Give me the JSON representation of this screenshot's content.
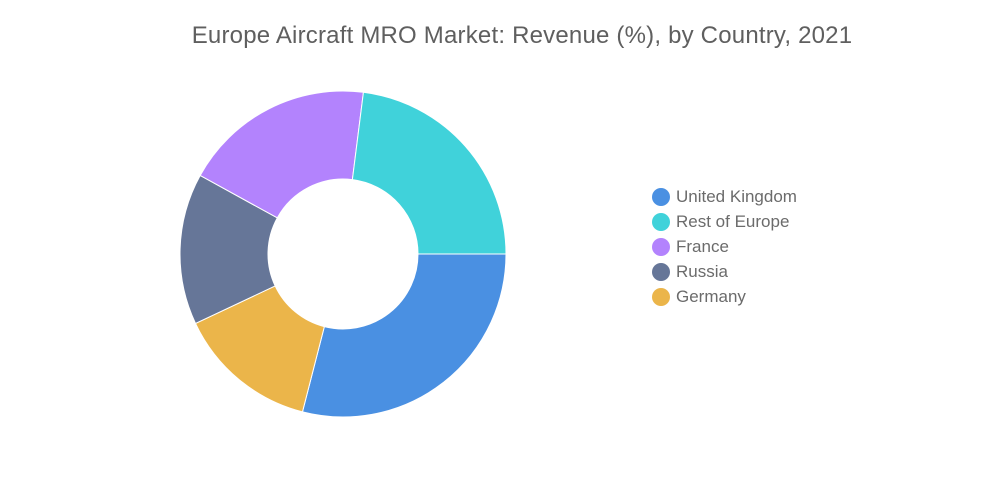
{
  "chart_data": {
    "type": "pie",
    "title": "Europe Aircraft MRO Market: Revenue (%), by Country, 2021",
    "donut": true,
    "legend_position": "right",
    "slices": [
      {
        "name": "United Kingdom",
        "value": 29,
        "color": "#4a90e2"
      },
      {
        "name": "Germany",
        "value": 14,
        "color": "#ebb54a"
      },
      {
        "name": "Russia",
        "value": 15,
        "color": "#667698"
      },
      {
        "name": "France",
        "value": 19,
        "color": "#b383fd"
      },
      {
        "name": "Rest of Europe",
        "value": 23,
        "color": "#40d2da"
      }
    ],
    "legend": [
      {
        "name": "United Kingdom",
        "color": "#4a90e2"
      },
      {
        "name": "Rest of Europe",
        "color": "#40d2da"
      },
      {
        "name": "France",
        "color": "#b383fd"
      },
      {
        "name": "Russia",
        "color": "#667698"
      },
      {
        "name": "Germany",
        "color": "#ebb54a"
      }
    ]
  }
}
